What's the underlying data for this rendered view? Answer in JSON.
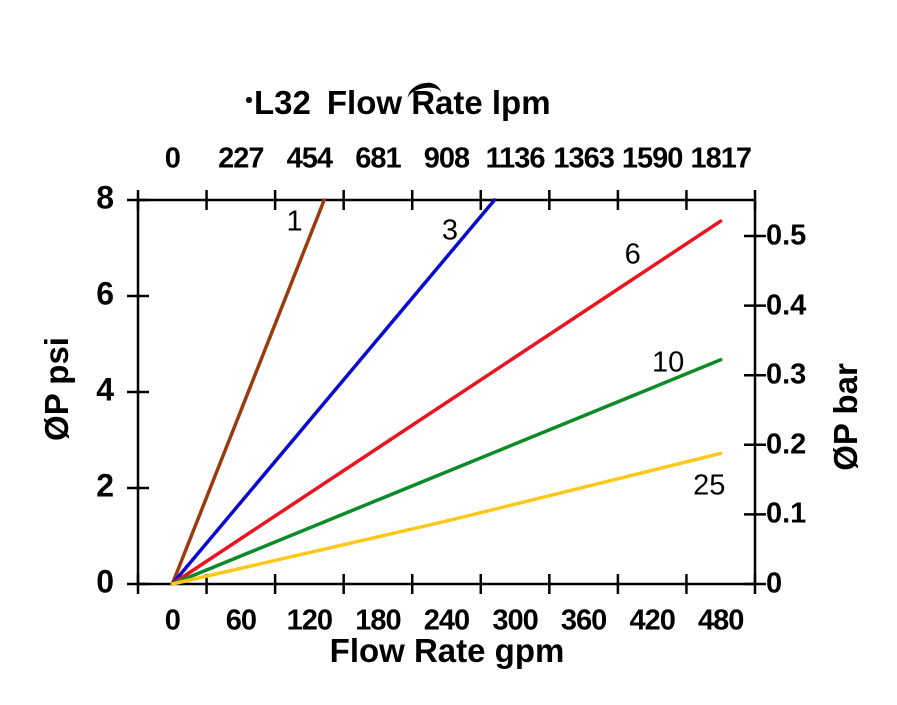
{
  "page": {
    "background": "#ffffff"
  },
  "header": {
    "model": "L32",
    "title": "Flow Rate lpm"
  },
  "axis_titles": {
    "left": "ØP psi",
    "right": "ØP bar",
    "bottom": "Flow Rate gpm"
  },
  "chart_data": {
    "type": "line",
    "title": "L32 Flow Rate lpm",
    "grid": false,
    "legend": "none",
    "x_top": {
      "label": "Flow Rate lpm",
      "tick_labels": [
        "0",
        "227",
        "454",
        "681",
        "908",
        "1136",
        "1363",
        "1590",
        "1817"
      ]
    },
    "x_bottom": {
      "label": "Flow Rate gpm",
      "min": 0,
      "max": 480,
      "tick_labels": [
        "0",
        "60",
        "120",
        "180",
        "240",
        "300",
        "360",
        "420",
        "480"
      ]
    },
    "y_left": {
      "label": "ØP psi",
      "min": 0,
      "max": 8,
      "ticks": [
        "8",
        "6",
        "4",
        "2",
        "0"
      ],
      "tick_values": [
        8,
        6,
        4,
        2,
        0
      ]
    },
    "y_right": {
      "label": "ØP bar",
      "ticks": [
        "0.5",
        "0.4",
        "0.3",
        "0.2",
        "0.1",
        "0"
      ],
      "tick_values": [
        0.5,
        0.4,
        0.3,
        0.2,
        0.1,
        0
      ],
      "psi_per_bar": 14.5
    },
    "series": [
      {
        "name": "1",
        "color": "#9A3B0F",
        "points": [
          [
            0,
            0
          ],
          [
            133,
            8
          ]
        ],
        "label_at": {
          "gpm": 107,
          "psi": 7.55
        }
      },
      {
        "name": "3",
        "color": "#0B0BD0",
        "points": [
          [
            0,
            0
          ],
          [
            282,
            8
          ]
        ],
        "label_at": {
          "gpm": 243,
          "psi": 7.35
        }
      },
      {
        "name": "6",
        "color": "#EA1523",
        "points": [
          [
            0,
            0
          ],
          [
            480,
            7.56
          ]
        ],
        "label_at": {
          "gpm": 403,
          "psi": 6.85
        }
      },
      {
        "name": "10",
        "color": "#0C8B28",
        "points": [
          [
            0,
            0
          ],
          [
            480,
            4.67
          ]
        ],
        "label_at": {
          "gpm": 434,
          "psi": 4.6
        }
      },
      {
        "name": "25",
        "color": "#FFC71A",
        "points": [
          [
            0,
            0
          ],
          [
            240,
            1.31
          ],
          [
            480,
            2.72
          ]
        ],
        "label_at": {
          "gpm": 470,
          "psi": 2.05
        }
      }
    ]
  }
}
